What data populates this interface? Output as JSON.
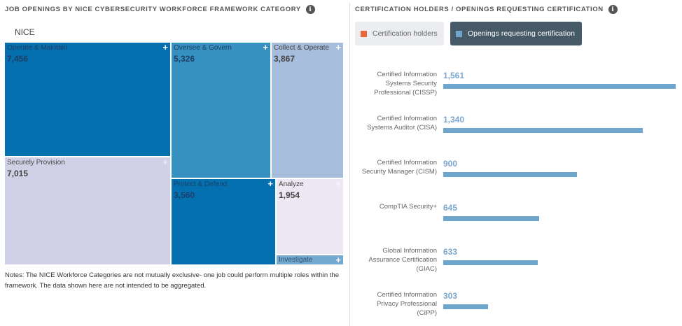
{
  "left_panel": {
    "title": "JOB OPENINGS BY NICE CYBERSECURITY WORKFORCE FRAMEWORK CATEGORY",
    "info_icon": "i",
    "root_label": "NICE",
    "notes": "Notes: The NICE Workforce Categories are not mutually exclusive- one job could perform multiple roles within the framework. The data shown here are not intended to be aggregated."
  },
  "right_panel": {
    "title": "CERTIFICATION HOLDERS / OPENINGS REQUESTING CERTIFICATION",
    "info_icon": "i",
    "legend": [
      {
        "label": "Certification holders",
        "color": "#e8673f",
        "active": false
      },
      {
        "label": "Openings requesting certification",
        "color": "#6fa6ce",
        "active": true
      }
    ]
  },
  "chart_data": [
    {
      "type": "treemap",
      "title": "JOB OPENINGS BY NICE CYBERSECURITY WORKFORCE FRAMEWORK CATEGORY",
      "root": "NICE",
      "expand_icon": "+",
      "categories": [
        "Operate & Maintain",
        "Securely Provision",
        "Oversee & Govern",
        "Collect & Operate",
        "Protect & Defend",
        "Analyze",
        "Investigate"
      ],
      "values": [
        7456,
        7015,
        5326,
        3867,
        3560,
        1954,
        null
      ],
      "labels": [
        "7,456",
        "7,015",
        "5,326",
        "3,867",
        "3,560",
        "1,954",
        ""
      ],
      "colors": [
        "#0570b0",
        "#d0d1e6",
        "#3690c0",
        "#a6bddb",
        "#0570b0",
        "#ece7f2",
        "#74a9cf"
      ]
    },
    {
      "type": "bar",
      "orientation": "horizontal",
      "title": "CERTIFICATION HOLDERS / OPENINGS REQUESTING CERTIFICATION",
      "categories": [
        "Certified Information Systems Security Professional (CISSP)",
        "Certified Information Systems Auditor (CISA)",
        "Certified Information Security Manager (CISM)",
        "CompTIA Security+",
        "Global Information Assurance Certification (GIAC)",
        "Certified Information Privacy Professional (CIPP)"
      ],
      "series": [
        {
          "name": "Openings requesting certification",
          "values": [
            1561,
            1340,
            900,
            645,
            633,
            303
          ]
        }
      ],
      "value_labels": [
        "1,561",
        "1,340",
        "900",
        "645",
        "633",
        "303"
      ],
      "xlim": [
        0,
        1561
      ],
      "grid": false,
      "legend": "top-left"
    }
  ]
}
